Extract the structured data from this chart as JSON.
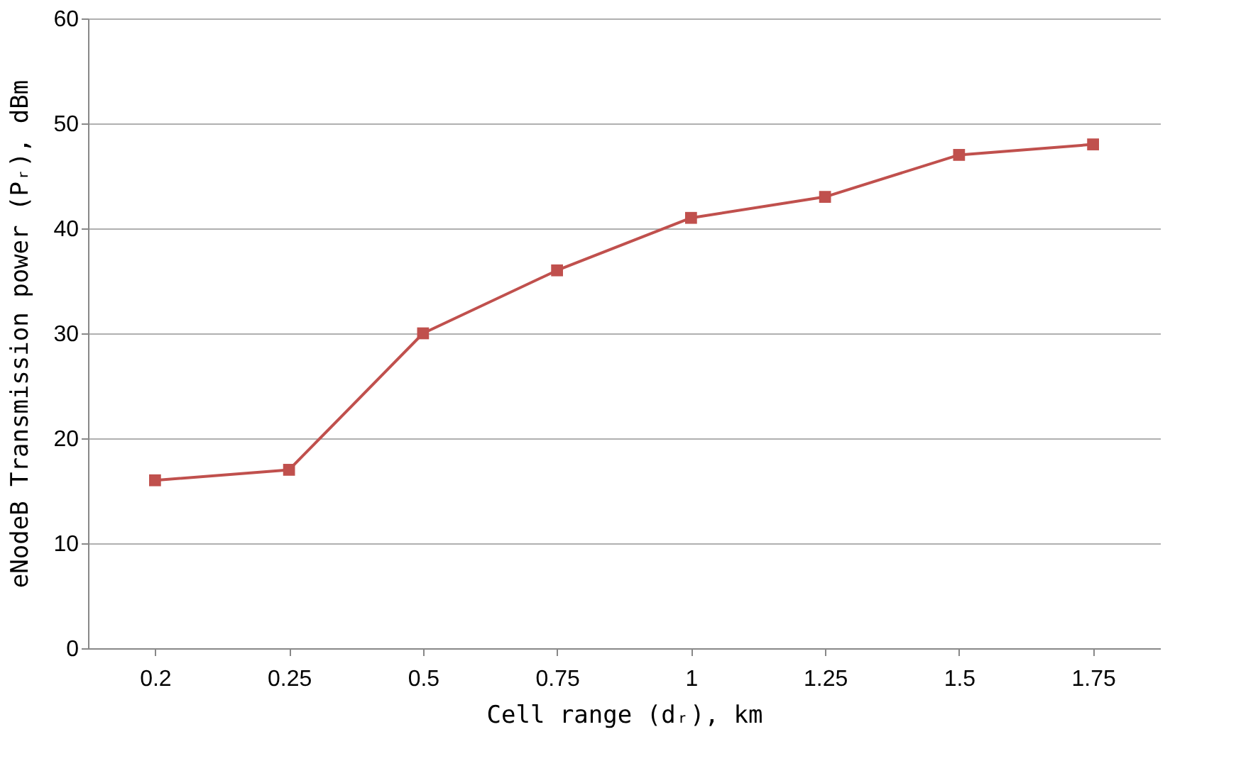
{
  "chart_data": {
    "type": "line",
    "xlabel": "Cell range (dᵣ), km",
    "ylabel": "eNodeB Transmission power (Pᵣ), dBm",
    "categories": [
      "0.2",
      "0.25",
      "0.5",
      "0.75",
      "1",
      "1.25",
      "1.5",
      "1.75"
    ],
    "series": [
      {
        "color": "#c0504d",
        "values": [
          16,
          17,
          30,
          36,
          41,
          43,
          47,
          48
        ]
      }
    ],
    "ylim": [
      0,
      60
    ],
    "yticks": [
      0,
      10,
      20,
      30,
      40,
      50,
      60
    ],
    "grid": "y",
    "marker": "square",
    "line_style": "solid"
  }
}
